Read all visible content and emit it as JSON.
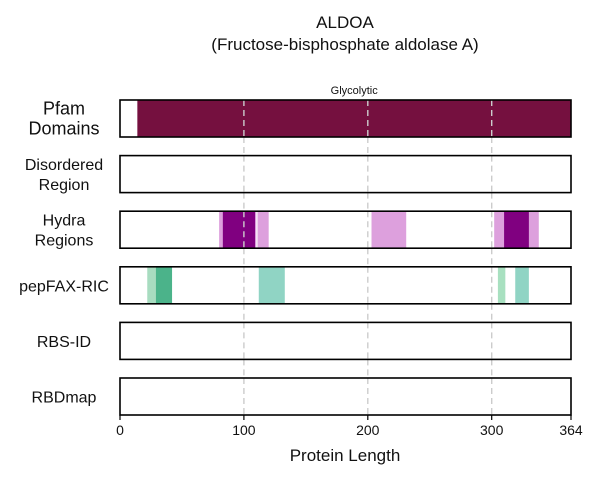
{
  "chart_data": {
    "type": "bar",
    "title": "ALDOA",
    "subtitle": "(Fructose-bisphosphate aldolase A)",
    "xlabel": "Protein Length",
    "xlim": [
      0,
      364
    ],
    "xticks": [
      0,
      100,
      200,
      300,
      364
    ],
    "gridlines": [
      100,
      200,
      300
    ],
    "tracks": [
      {
        "id": "pfam",
        "label_lines": [
          "Pfam",
          "Domains"
        ],
        "segments": [
          {
            "start": 14,
            "end": 364,
            "color": "#75103f",
            "label": "Glycolytic"
          }
        ]
      },
      {
        "id": "disordered",
        "label_lines": [
          "Disordered",
          "Region"
        ],
        "segments": []
      },
      {
        "id": "hydra",
        "label_lines": [
          "Hydra",
          "Regions"
        ],
        "segments": [
          {
            "start": 80,
            "end": 110,
            "color": "#dda0dd"
          },
          {
            "start": 83,
            "end": 109,
            "color": "#800080"
          },
          {
            "start": 111,
            "end": 120,
            "color": "#dda0dd"
          },
          {
            "start": 203,
            "end": 231,
            "color": "#dda0dd"
          },
          {
            "start": 302,
            "end": 338,
            "color": "#dda0dd"
          },
          {
            "start": 310,
            "end": 330,
            "color": "#800080"
          }
        ]
      },
      {
        "id": "pepfax",
        "label_lines": [
          "pepFAX-RIC"
        ],
        "segments": [
          {
            "start": 22,
            "end": 42,
            "color": "#a8dcc0"
          },
          {
            "start": 29,
            "end": 42,
            "color": "#4bb38a"
          },
          {
            "start": 112,
            "end": 133,
            "color": "#90d4c4"
          },
          {
            "start": 305,
            "end": 311,
            "color": "#a8e0c0"
          },
          {
            "start": 319,
            "end": 330,
            "color": "#90d4c4"
          }
        ]
      },
      {
        "id": "rbsid",
        "label_lines": [
          "RBS-ID"
        ],
        "segments": []
      },
      {
        "id": "rbdmap",
        "label_lines": [
          "RBDmap"
        ],
        "segments": []
      }
    ]
  }
}
